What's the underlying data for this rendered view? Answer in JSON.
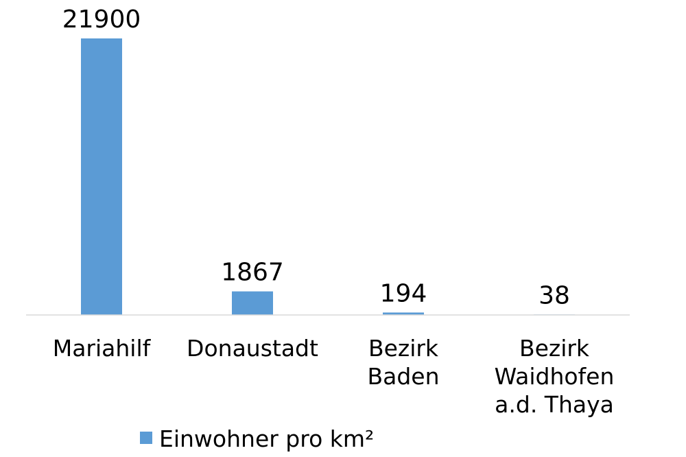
{
  "chart_data": {
    "type": "bar",
    "categories": [
      [
        "Mariahilf"
      ],
      [
        "Donaustadt"
      ],
      [
        "Bezirk",
        "Baden"
      ],
      [
        "Bezirk",
        "Waidhofen",
        "a.d. Thaya"
      ]
    ],
    "series": [
      {
        "name": "Einwohner pro km²",
        "values": [
          21900,
          1867,
          194,
          38
        ],
        "color": "#5b9bd5"
      }
    ],
    "data_labels": [
      "21900",
      "1867",
      "194",
      "38"
    ],
    "ylim": [
      0,
      21900
    ],
    "grid": false,
    "legend_position": "bottom",
    "axis_color": "#d9d9d9"
  }
}
